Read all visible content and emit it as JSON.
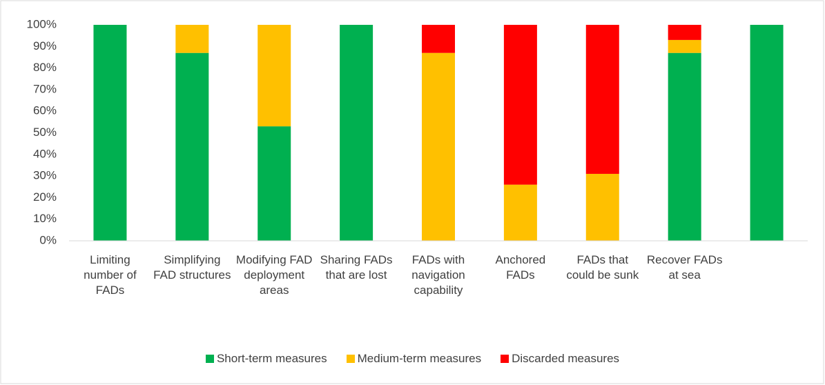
{
  "chart_data": {
    "type": "stacked_bar",
    "categories": [
      "Limiting number of FADs",
      "Simplifying FAD structures",
      "Modifying FAD deployment areas",
      "Sharing FADs that are lost",
      "FADs with navigation capability",
      "Anchored FADs",
      "FADs that could be sunk",
      "Recover FADs at sea",
      null
    ],
    "series": [
      {
        "name": "Short-term measures",
        "color": "#00b050",
        "values": [
          100,
          87,
          53,
          100,
          0,
          0,
          0,
          87,
          100
        ]
      },
      {
        "name": "Medium-term measures",
        "color": "#ffc000",
        "values": [
          0,
          13,
          47,
          0,
          87,
          26,
          31,
          6,
          0
        ]
      },
      {
        "name": "Discarded measures",
        "color": "#ff0000",
        "values": [
          0,
          0,
          0,
          0,
          13,
          74,
          69,
          7,
          0
        ]
      }
    ],
    "ylim": [
      0,
      100
    ],
    "yticks": [
      {
        "value": 0,
        "label": "0%"
      },
      {
        "value": 10,
        "label": "10%"
      },
      {
        "value": 20,
        "label": "20%"
      },
      {
        "value": 30,
        "label": "30%"
      },
      {
        "value": 40,
        "label": "40%"
      },
      {
        "value": 50,
        "label": "50%"
      },
      {
        "value": 60,
        "label": "60%"
      },
      {
        "value": 70,
        "label": "70%"
      },
      {
        "value": 80,
        "label": "80%"
      },
      {
        "value": 90,
        "label": "90%"
      },
      {
        "value": 100,
        "label": "100%"
      }
    ],
    "grid": false,
    "legend": "bottom"
  }
}
